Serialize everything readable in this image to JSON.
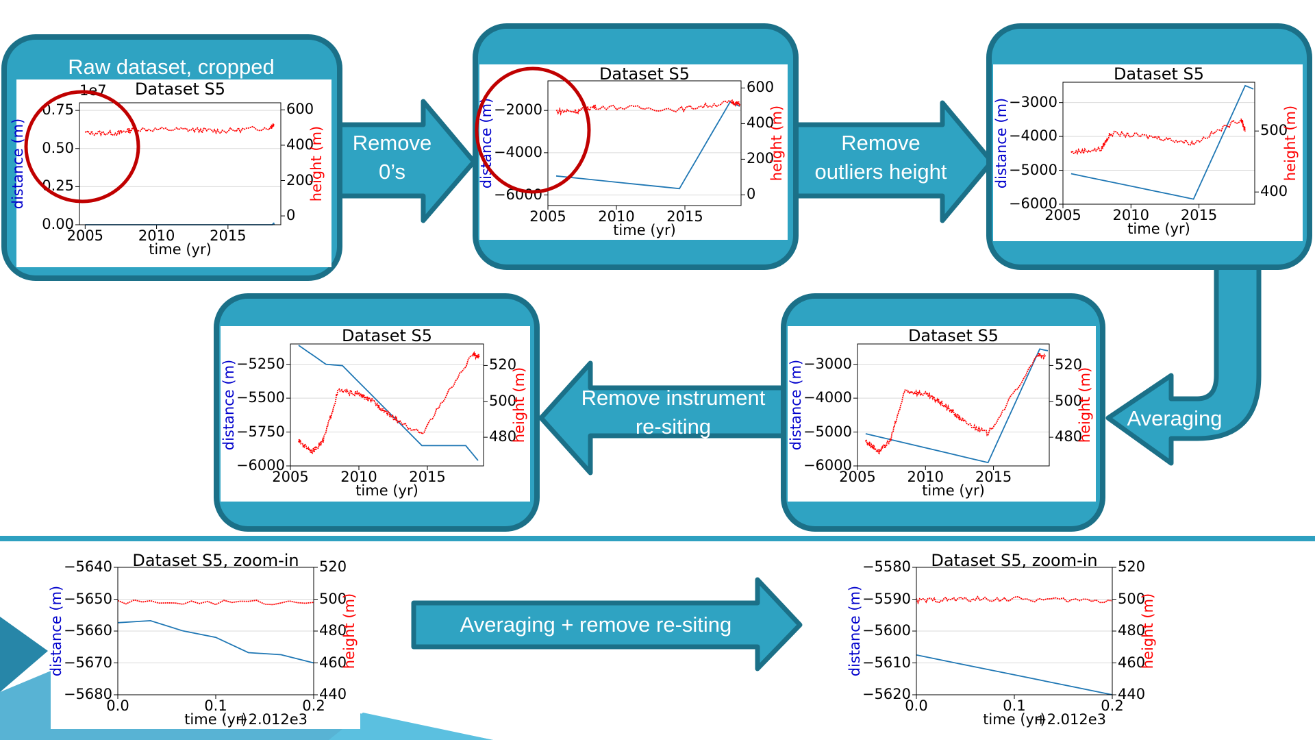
{
  "steps": {
    "raw_heading": "Raw dataset, cropped",
    "remove_zeros": [
      "Remove",
      "0’s"
    ],
    "remove_outliers": [
      "Remove",
      "outliers height"
    ],
    "averaging": "Averaging",
    "remove_resiting": [
      "Remove instrument",
      "re-siting"
    ],
    "bottom_arrow": "Averaging + remove re-siting"
  },
  "colors": {
    "panel_fill": "#2fa3c2",
    "panel_border": "#1b7088",
    "distance_line": "#1f77b4",
    "height_line": "#ff0000",
    "circle": "#c00000",
    "divider": "#2ea0c0"
  },
  "axis_text": {
    "xlabel": "time (yr)",
    "xlabel_zoom": "time (yr)",
    "x_offset": "+2.012e3",
    "ylabel_left": "distance (m)",
    "ylabel_right": "height (m)",
    "scale_note": "1e7"
  },
  "chart_data": [
    {
      "id": "raw",
      "type": "line",
      "title": "Dataset S5",
      "xlabel": "time (yr)",
      "ylabel": "distance (m)",
      "ylabel2": "height (m)",
      "xlim": [
        2004.6,
        2018.7
      ],
      "xticks": [
        "2005",
        "2010",
        "2015"
      ],
      "ylim": [
        0,
        0.8
      ],
      "yticks": [
        "0.00",
        "0.25",
        "0.50",
        "0.75"
      ],
      "y_scale_note": "1e7",
      "y2lim": [
        -50,
        640
      ],
      "y2ticks": [
        "0",
        "200",
        "400",
        "600"
      ],
      "series": [
        {
          "axis": "left",
          "x": [
            2005,
            2010,
            2015,
            2018.1,
            2018.2,
            2018.25
          ],
          "y": [
            0.0,
            0.0,
            0.0,
            0.0,
            0.01,
            0.0
          ]
        },
        {
          "axis": "right",
          "x": [
            2005,
            2007.2,
            2008.4,
            2012,
            2014.6,
            2018,
            2018.2
          ],
          "y": [
            470,
            468,
            490,
            488,
            480,
            500,
            520
          ]
        }
      ]
    },
    {
      "id": "remove-zeros",
      "type": "line",
      "title": "Dataset S5",
      "xlabel": "time (yr)",
      "ylabel": "distance (m)",
      "ylabel2": "height (m)",
      "xlim": [
        2005,
        2019.1
      ],
      "xticks": [
        "2005",
        "2010",
        "2015"
      ],
      "ylim": [
        -6500,
        -600
      ],
      "yticks": [
        "−2000",
        "−4000",
        "−6000"
      ],
      "y2lim": [
        -60,
        640
      ],
      "y2ticks": [
        "0",
        "200",
        "400",
        "600"
      ],
      "series": [
        {
          "axis": "left",
          "x": [
            2005.6,
            2014.6,
            2018.3,
            2019
          ],
          "y": [
            -5100,
            -5700,
            -1600,
            -1800
          ]
        },
        {
          "axis": "right",
          "x": [
            2005.6,
            2007.2,
            2008.5,
            2014.6,
            2018.4,
            2019
          ],
          "y": [
            470,
            470,
            495,
            480,
            520,
            510
          ]
        }
      ]
    },
    {
      "id": "remove-outliers",
      "type": "line",
      "title": "Dataset S5",
      "xlabel": "time (yr)",
      "ylabel": "distance (m)",
      "ylabel2": "height (m)",
      "xlim": [
        2005,
        2019.1
      ],
      "xticks": [
        "2005",
        "2010",
        "2015"
      ],
      "ylim": [
        -6000,
        -2400
      ],
      "yticks": [
        "−3000",
        "−4000",
        "−5000",
        "−6000"
      ],
      "y2lim": [
        380,
        580
      ],
      "y2ticks": [
        "400",
        "500"
      ],
      "series": [
        {
          "axis": "left",
          "x": [
            2005.6,
            2014.6,
            2018.4,
            2019
          ],
          "y": [
            -5100,
            -5850,
            -2500,
            -2600
          ]
        },
        {
          "axis": "right",
          "x": [
            2005.6,
            2007.8,
            2008.5,
            2011.8,
            2014.6,
            2018.1,
            2018.4
          ],
          "y": [
            465,
            470,
            496,
            490,
            480,
            520,
            500
          ]
        }
      ]
    },
    {
      "id": "averaging",
      "type": "line",
      "title": "Dataset S5",
      "xlabel": "time (yr)",
      "ylabel": "distance (m)",
      "ylabel2": "height (m)",
      "xlim": [
        2005,
        2019.1
      ],
      "xticks": [
        "2005",
        "2010",
        "2015"
      ],
      "ylim": [
        -6000,
        -2400
      ],
      "yticks": [
        "−3000",
        "−4000",
        "−5000",
        "−6000"
      ],
      "y2lim": [
        464,
        532
      ],
      "y2ticks": [
        "480",
        "500",
        "520"
      ],
      "series": [
        {
          "axis": "left",
          "x": [
            2005.6,
            2014.6,
            2018.4,
            2019
          ],
          "y": [
            -5050,
            -5900,
            -2550,
            -2600
          ]
        },
        {
          "axis": "right",
          "x": [
            2005.6,
            2006.6,
            2007.4,
            2008.5,
            2010,
            2011,
            2012,
            2013,
            2014.6,
            2018.3,
            2018.8
          ],
          "y": [
            478,
            472,
            478,
            506,
            504,
            500,
            494,
            488,
            482,
            526,
            525
          ]
        }
      ]
    },
    {
      "id": "remove-resiting",
      "type": "line",
      "title": "Dataset S5",
      "xlabel": "time (yr)",
      "ylabel": "distance (m)",
      "ylabel2": "height (m)",
      "xlim": [
        2005,
        2019.1
      ],
      "xticks": [
        "2005",
        "2010",
        "2015"
      ],
      "ylim": [
        -6000,
        -5100
      ],
      "yticks": [
        "−5250",
        "−5500",
        "−5750",
        "−6000"
      ],
      "y2lim": [
        464,
        532
      ],
      "y2ticks": [
        "480",
        "500",
        "520"
      ],
      "series": [
        {
          "axis": "left",
          "x": [
            2005.6,
            2007.6,
            2008.8,
            2014.6,
            2017.8,
            2018.7
          ],
          "y": [
            -5110,
            -5250,
            -5260,
            -5850,
            -5850,
            -5960
          ]
        },
        {
          "axis": "right",
          "x": [
            2005.6,
            2006.6,
            2007.4,
            2008.5,
            2010,
            2011,
            2012,
            2013,
            2014.6,
            2018.3,
            2018.8
          ],
          "y": [
            478,
            472,
            478,
            506,
            504,
            500,
            494,
            488,
            482,
            526,
            525
          ]
        }
      ]
    },
    {
      "id": "zoom-raw",
      "type": "line",
      "title": "Dataset S5, zoom-in",
      "xlabel": "time (yr)",
      "ylabel": "distance (m)",
      "ylabel2": "height (m)",
      "x_offset": "+2.012e3",
      "xlim": [
        0.0,
        0.2
      ],
      "xticks": [
        "0.0",
        "0.1",
        "0.2"
      ],
      "ylim": [
        -5680,
        -5640
      ],
      "yticks": [
        "−5640",
        "−5650",
        "−5660",
        "−5670",
        "−5680"
      ],
      "y2lim": [
        440,
        520
      ],
      "y2ticks": [
        "440",
        "460",
        "480",
        "500",
        "520"
      ],
      "series": [
        {
          "axis": "left",
          "x": [
            0.0,
            0.2
          ],
          "y": [
            -5656,
            -5670
          ]
        },
        {
          "axis": "right",
          "x": [
            0.0,
            0.2
          ],
          "y": [
            498,
            498
          ]
        }
      ]
    },
    {
      "id": "zoom-processed",
      "type": "line",
      "title": "Dataset S5, zoom-in",
      "xlabel": "time (yr)",
      "ylabel": "distance (m)",
      "ylabel2": "height (m)",
      "x_offset": "+2.012e3",
      "xlim": [
        0.0,
        0.2
      ],
      "xticks": [
        "0.0",
        "0.1",
        "0.2"
      ],
      "ylim": [
        -5620,
        -5580
      ],
      "yticks": [
        "−5580",
        "−5590",
        "−5600",
        "−5610",
        "−5620"
      ],
      "y2lim": [
        440,
        520
      ],
      "y2ticks": [
        "440",
        "460",
        "480",
        "500",
        "520"
      ],
      "series": [
        {
          "axis": "left",
          "x": [
            0.0,
            0.2
          ],
          "y": [
            -5607.5,
            -5620
          ]
        },
        {
          "axis": "right",
          "x": [
            0.0,
            0.04,
            0.1,
            0.2
          ],
          "y": [
            499,
            500,
            500,
            499
          ]
        }
      ]
    }
  ]
}
